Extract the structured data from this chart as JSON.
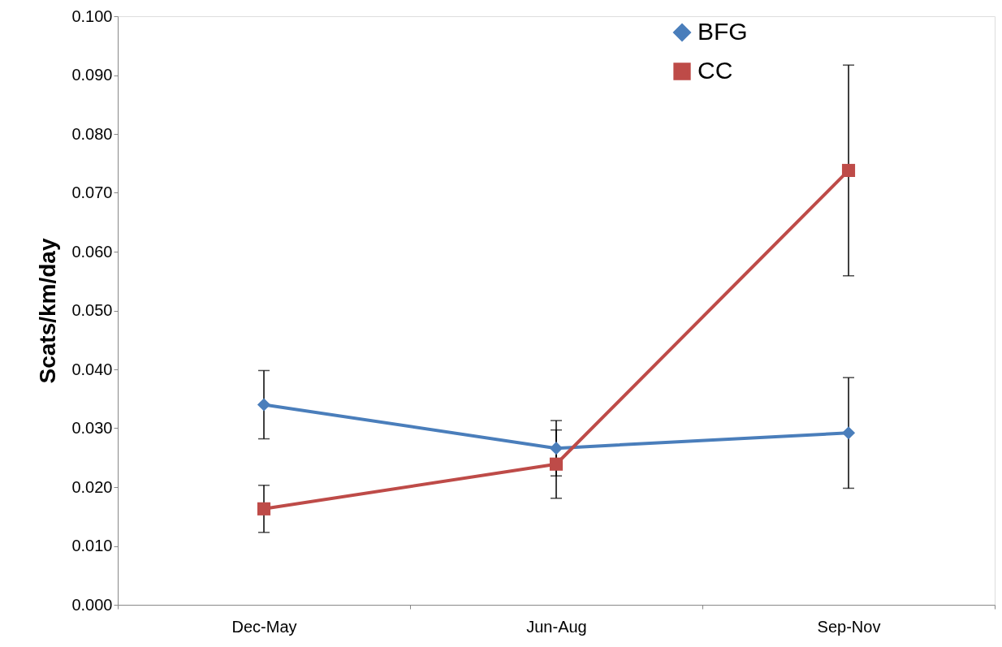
{
  "chart_data": {
    "type": "line",
    "ylabel": "Scats/km/day",
    "categories": [
      "Dec-May",
      "Jun-Aug",
      "Sep-Nov"
    ],
    "series": [
      {
        "name": "BFG",
        "color": "#4a7ebb",
        "marker": "diamond",
        "values": [
          0.034,
          0.0266,
          0.0292
        ],
        "errors": [
          0.0058,
          0.0047,
          0.0094
        ]
      },
      {
        "name": "CC",
        "color": "#be4b48",
        "marker": "square",
        "values": [
          0.0163,
          0.0239,
          0.0738
        ],
        "errors": [
          0.004,
          0.0058,
          0.0179
        ]
      }
    ],
    "ylim": [
      0,
      0.1
    ],
    "yticks": [
      {
        "value": 0,
        "label": "0.000"
      },
      {
        "value": 0.01,
        "label": "0.010"
      },
      {
        "value": 0.02,
        "label": "0.020"
      },
      {
        "value": 0.03,
        "label": "0.030"
      },
      {
        "value": 0.04,
        "label": "0.040"
      },
      {
        "value": 0.05,
        "label": "0.050"
      },
      {
        "value": 0.06,
        "label": "0.060"
      },
      {
        "value": 0.07,
        "label": "0.070"
      },
      {
        "value": 0.08,
        "label": "0.080"
      },
      {
        "value": 0.09,
        "label": "0.090"
      },
      {
        "value": 0.1,
        "label": "0.100"
      }
    ],
    "grid": false,
    "legend": "top right",
    "line_style": "solid"
  }
}
